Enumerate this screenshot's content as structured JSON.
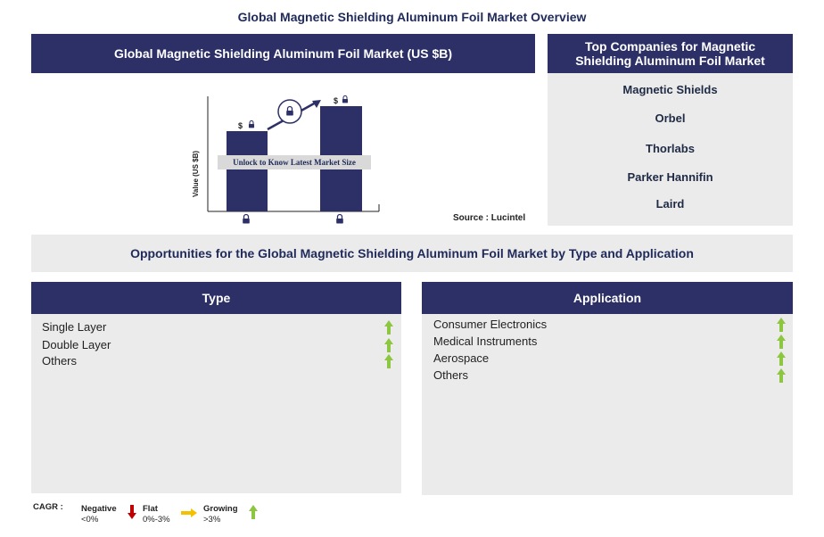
{
  "header": {
    "title": "Global Magnetic Shielding Aluminum Foil Market Overview"
  },
  "market_panel": {
    "title": "Global Magnetic Shielding Aluminum Foil Market (US $B)",
    "y_axis_label": "Value (US $B)",
    "currency_symbol": "$",
    "overlay_text": "Unlock to Know Latest Market Size",
    "source": "Source : Lucintel"
  },
  "companies_panel": {
    "title": "Top Companies for Magnetic Shielding Aluminum Foil Market",
    "companies": [
      "Magnetic Shields",
      "Orbel",
      "Thorlabs",
      "Parker Hannifin",
      "Laird"
    ]
  },
  "opportunities": {
    "title": "Opportunities for the Global Magnetic Shielding Aluminum Foil Market by Type and Application",
    "type": {
      "title": "Type",
      "items": [
        "Single Layer",
        "Double Layer",
        "Others"
      ]
    },
    "application": {
      "title": "Application",
      "items": [
        "Consumer Electronics",
        "Medical Instruments",
        "Aerospace",
        "Others"
      ]
    }
  },
  "legend": {
    "label": "CAGR :",
    "negative": {
      "label": "Negative",
      "range": "<0%"
    },
    "flat": {
      "label": "Flat",
      "range": "0%-3%"
    },
    "growing": {
      "label": "Growing",
      "range": ">3%"
    }
  }
}
